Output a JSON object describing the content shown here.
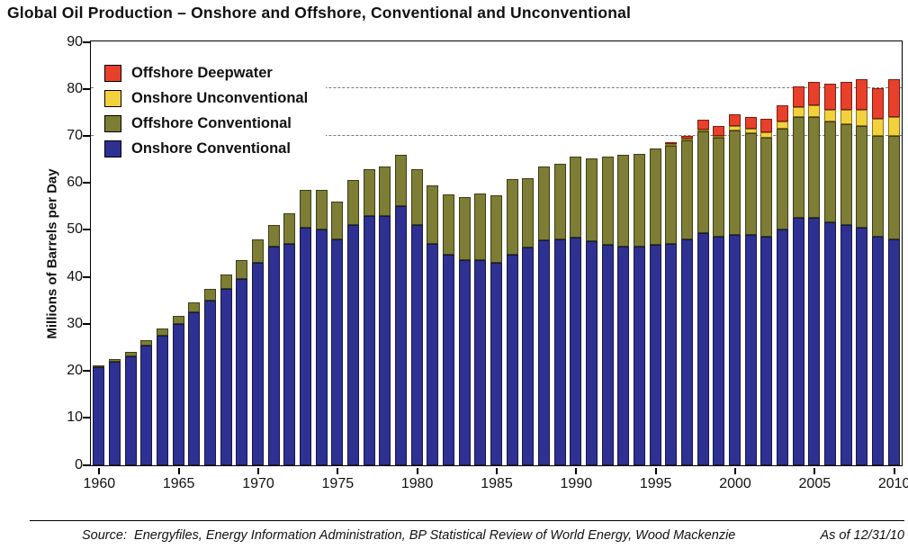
{
  "title": "Global Oil Production – Onshore and Offshore, Conventional and Unconventional",
  "footer": {
    "source": "Source:  Energyfiles, Energy Information Administration, BP Statistical Review of World Energy, Wood Mackenzie",
    "as_of": "As of 12/31/10"
  },
  "chart_data": {
    "type": "bar",
    "stacked": true,
    "title": "Global Oil Production – Onshore and Offshore, Conventional and Unconventional",
    "xlabel": "",
    "ylabel": "Millions of Barrels per Day",
    "ylim": [
      0,
      90
    ],
    "yticks": [
      0,
      10,
      20,
      30,
      40,
      50,
      60,
      70,
      80,
      90
    ],
    "gridlines_dashed_at": [
      70,
      80
    ],
    "grid": "dashed horizontal reference lines at 70 and 80 only",
    "legend_position": "upper-left inside plot, white background",
    "x": [
      1960,
      1961,
      1962,
      1963,
      1964,
      1965,
      1966,
      1967,
      1968,
      1969,
      1970,
      1971,
      1972,
      1973,
      1974,
      1975,
      1976,
      1977,
      1978,
      1979,
      1980,
      1981,
      1982,
      1983,
      1984,
      1985,
      1986,
      1987,
      1988,
      1989,
      1990,
      1991,
      1992,
      1993,
      1994,
      1995,
      1996,
      1997,
      1998,
      1999,
      2000,
      2001,
      2002,
      2003,
      2004,
      2005,
      2006,
      2007,
      2008,
      2009,
      2010
    ],
    "xtick_labels": [
      1960,
      1965,
      1970,
      1975,
      1980,
      1985,
      1990,
      1995,
      2000,
      2005,
      2010
    ],
    "series": [
      {
        "name": "Onshore Conventional",
        "color": "#2e3192",
        "border_color": "#16183f",
        "values": [
          20.8,
          22,
          23.2,
          25.5,
          27.5,
          30,
          32.5,
          35,
          37.5,
          39.5,
          43,
          46.5,
          47,
          50.5,
          50,
          48,
          51,
          53,
          53,
          55,
          51,
          47,
          44.8,
          43.5,
          43.5,
          43,
          44.8,
          46.3,
          47.8,
          48,
          48.3,
          47.5,
          46.8,
          46.5,
          46.5,
          46.8,
          47,
          48,
          49.3,
          48.5,
          49,
          49,
          48.5,
          50,
          52.5,
          52.5,
          51.5,
          51,
          50.5,
          48.5,
          48
        ]
      },
      {
        "name": "Offshore Conventional",
        "color": "#7d7d35",
        "border_color": "#3c3d15",
        "values": [
          0.5,
          0.6,
          0.8,
          1,
          1.5,
          1.8,
          2,
          2.5,
          3,
          4,
          5,
          4.5,
          6.5,
          8,
          8.5,
          8,
          9.5,
          9.8,
          10.5,
          11,
          11.8,
          12.5,
          12.7,
          13.5,
          14.3,
          14.3,
          15.9,
          14.7,
          15.7,
          16,
          17.2,
          17.7,
          18.7,
          19.5,
          19.7,
          20.5,
          20.8,
          21,
          21.5,
          21,
          22,
          21.5,
          21,
          21.5,
          21.5,
          21.5,
          21.5,
          21.5,
          21.5,
          21.5,
          22
        ]
      },
      {
        "name": "Onshore Unconventional",
        "color": "#f2d13c",
        "border_color": "#8a731c",
        "values": [
          0,
          0,
          0,
          0,
          0,
          0,
          0,
          0,
          0,
          0,
          0,
          0,
          0,
          0,
          0,
          0,
          0,
          0,
          0,
          0,
          0,
          0,
          0,
          0,
          0,
          0,
          0,
          0,
          0,
          0,
          0,
          0,
          0,
          0,
          0,
          0,
          0.3,
          0.4,
          0.5,
          0.5,
          1,
          1,
          1.2,
          1.5,
          2,
          2.5,
          2.5,
          3,
          3.5,
          3.5,
          4
        ]
      },
      {
        "name": "Offshore Deepwater",
        "color": "#e8402a",
        "border_color": "#7e1d10",
        "values": [
          0,
          0,
          0,
          0,
          0,
          0,
          0,
          0,
          0,
          0,
          0,
          0,
          0,
          0,
          0,
          0,
          0,
          0,
          0,
          0,
          0,
          0,
          0,
          0,
          0,
          0,
          0,
          0,
          0,
          0,
          0,
          0,
          0,
          0,
          0,
          0,
          0.2,
          0.6,
          2,
          2,
          2.5,
          2.5,
          2.8,
          3.5,
          4.5,
          5,
          5.5,
          6,
          6.5,
          6.5,
          8
        ]
      }
    ],
    "legend_order": [
      "Offshore Deepwater",
      "Onshore Unconventional",
      "Offshore Conventional",
      "Onshore Conventional"
    ]
  }
}
